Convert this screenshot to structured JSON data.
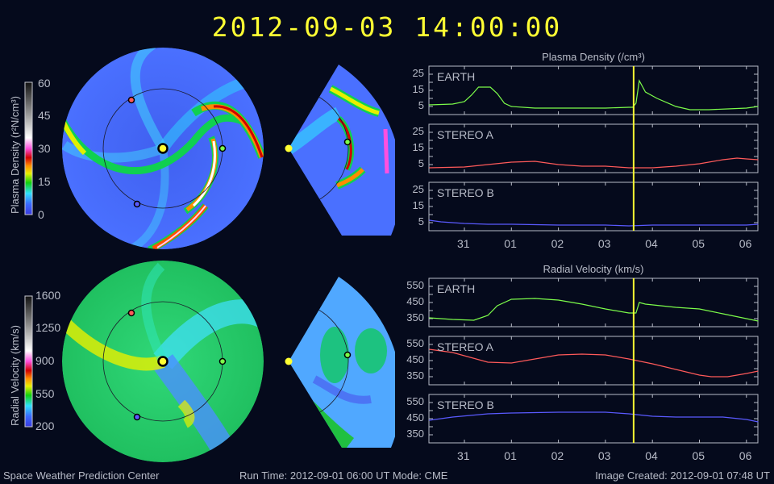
{
  "header": {
    "timestamp": "2012-09-03 14:00:00"
  },
  "footer": {
    "left": "Space Weather Prediction Center",
    "center": "Run Time: 2012-09-01 06:00 UT   Mode: CME",
    "right": "Image Created: 2012-09-01 07:48 UT"
  },
  "colorbars": {
    "density": {
      "label": "Plasma Density (r²N/cm³)",
      "ticks": [
        "60",
        "45",
        "30",
        "15",
        "0"
      ]
    },
    "velocity": {
      "label": "Radial Velocity (km/s)",
      "ticks": [
        "1600",
        "1250",
        "900",
        "550",
        "200"
      ]
    }
  },
  "colors": {
    "background": "#050a1c",
    "earth": "#7cfc4a",
    "stereo_a": "#ff5a5a",
    "stereo_b": "#5a5aff",
    "current_time_marker": "#ffff33",
    "axis": "#b8bcc8"
  },
  "chart_data": [
    {
      "type": "line",
      "title": "Plasma Density (/cm³)",
      "xlabel": "",
      "x_ticks": [
        "31",
        "01",
        "02",
        "03",
        "04",
        "05",
        "06"
      ],
      "current_time_marker_x": 3.6,
      "panels": [
        {
          "name": "EARTH",
          "ylim": [
            0,
            30
          ],
          "y_ticks": [
            "25",
            "15",
            "5"
          ],
          "x": [
            -0.75,
            -0.25,
            0.0,
            0.15,
            0.3,
            0.45,
            0.55,
            0.7,
            0.85,
            1.0,
            1.5,
            2.0,
            2.5,
            3.0,
            3.5,
            3.58,
            3.65,
            3.72,
            3.85,
            4.1,
            4.5,
            4.8,
            5.2,
            5.6,
            6.0,
            6.25
          ],
          "values": [
            6,
            6.5,
            8,
            12,
            17,
            17,
            17,
            13,
            7,
            5,
            4,
            4,
            4,
            4,
            4.5,
            4.5,
            7,
            21,
            14,
            10,
            5,
            3,
            3,
            3.5,
            4,
            5
          ]
        },
        {
          "name": "STEREO A",
          "ylim": [
            0,
            30
          ],
          "y_ticks": [
            "25",
            "15",
            "5"
          ],
          "x": [
            -0.75,
            0,
            0.5,
            1.0,
            1.5,
            2.0,
            2.5,
            3.0,
            3.5,
            4.0,
            4.5,
            5.0,
            5.5,
            5.8,
            6.0,
            6.25
          ],
          "values": [
            3,
            3.5,
            5,
            6.5,
            7,
            5,
            4,
            4,
            3,
            3,
            4,
            5.5,
            8,
            9,
            8.5,
            8
          ]
        },
        {
          "name": "STEREO B",
          "ylim": [
            0,
            30
          ],
          "y_ticks": [
            "25",
            "15",
            "5"
          ],
          "x": [
            -0.75,
            -0.5,
            0,
            0.5,
            1.0,
            2.0,
            3.0,
            3.5,
            4.0,
            5.0,
            6.0,
            6.25
          ],
          "values": [
            6.5,
            5.5,
            4.5,
            4,
            4,
            3.5,
            3.5,
            3,
            3.5,
            3.5,
            3.5,
            4
          ]
        }
      ]
    },
    {
      "type": "line",
      "title": "Radial Velocity (km/s)",
      "xlabel": "",
      "x_ticks": [
        "31",
        "01",
        "02",
        "03",
        "04",
        "05",
        "06"
      ],
      "current_time_marker_x": 3.6,
      "panels": [
        {
          "name": "EARTH",
          "ylim": [
            300,
            600
          ],
          "y_ticks": [
            "550",
            "450",
            "350"
          ],
          "x": [
            -0.75,
            -0.25,
            0.2,
            0.5,
            0.7,
            1.0,
            1.5,
            2.0,
            2.5,
            3.0,
            3.5,
            3.65,
            3.72,
            3.85,
            4.5,
            5.0,
            5.5,
            6.0,
            6.25
          ],
          "values": [
            355,
            345,
            340,
            370,
            430,
            470,
            475,
            465,
            440,
            410,
            385,
            385,
            450,
            440,
            420,
            410,
            380,
            350,
            335
          ]
        },
        {
          "name": "STEREO A",
          "ylim": [
            300,
            600
          ],
          "y_ticks": [
            "550",
            "450",
            "350"
          ],
          "x": [
            -0.75,
            -0.25,
            0.5,
            1.0,
            1.5,
            2.0,
            2.5,
            3.0,
            3.5,
            4.0,
            4.5,
            5.0,
            5.25,
            5.6,
            6.0,
            6.25
          ],
          "values": [
            520,
            500,
            440,
            435,
            460,
            485,
            490,
            485,
            460,
            430,
            395,
            360,
            350,
            350,
            370,
            385
          ]
        },
        {
          "name": "STEREO B",
          "ylim": [
            300,
            600
          ],
          "y_ticks": [
            "550",
            "450",
            "350"
          ],
          "x": [
            -0.75,
            -0.25,
            0.5,
            1.0,
            2.0,
            2.5,
            3.0,
            3.5,
            4.0,
            4.5,
            5.0,
            5.5,
            6.0,
            6.25
          ],
          "values": [
            440,
            460,
            480,
            485,
            490,
            490,
            490,
            480,
            465,
            460,
            460,
            460,
            445,
            430
          ]
        }
      ]
    }
  ]
}
